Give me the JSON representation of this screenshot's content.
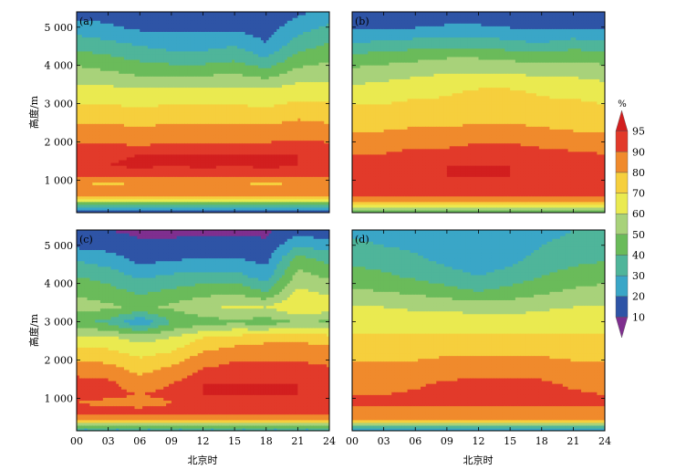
{
  "chart_data": [
    {
      "type": "heatmap",
      "panel_label": "(a)",
      "ylabel": "高度/m",
      "xlabel": "",
      "x_ticks": [
        "00",
        "03",
        "06",
        "09",
        "12",
        "15",
        "18",
        "21",
        "24"
      ],
      "y_ticks": [
        "1 000",
        "2 000",
        "3 000",
        "4 000",
        "5 000"
      ],
      "xlim": [
        0,
        24
      ],
      "ylim": [
        150,
        5400
      ],
      "z_unit": "%",
      "time_h": [
        0,
        3,
        6,
        9,
        12,
        15,
        18,
        21,
        24
      ],
      "heights_m": [
        200,
        350,
        500,
        700,
        900,
        1100,
        1400,
        1700,
        2000,
        2300,
        2600,
        3000,
        3400,
        3800,
        4200,
        4600,
        5000,
        5400
      ],
      "values": [
        [
          15,
          35,
          72,
          90,
          80,
          92,
          95,
          95,
          90,
          84,
          78,
          70,
          62,
          55,
          45,
          35,
          25,
          15
        ],
        [
          15,
          35,
          72,
          90,
          78,
          92,
          95,
          94,
          90,
          84,
          78,
          70,
          62,
          52,
          42,
          32,
          22,
          15
        ],
        [
          15,
          35,
          72,
          88,
          80,
          92,
          96,
          95,
          88,
          82,
          76,
          68,
          60,
          48,
          38,
          28,
          18,
          12
        ],
        [
          15,
          35,
          72,
          90,
          80,
          92,
          95,
          95,
          90,
          84,
          78,
          70,
          60,
          48,
          35,
          25,
          18,
          12
        ],
        [
          15,
          35,
          72,
          90,
          80,
          92,
          96,
          95,
          90,
          84,
          78,
          70,
          62,
          48,
          35,
          25,
          18,
          12
        ],
        [
          15,
          35,
          72,
          90,
          80,
          92,
          95,
          95,
          90,
          84,
          78,
          70,
          62,
          50,
          38,
          28,
          18,
          12
        ],
        [
          15,
          35,
          72,
          90,
          78,
          92,
          96,
          95,
          90,
          84,
          76,
          68,
          60,
          45,
          30,
          20,
          15,
          12
        ],
        [
          15,
          35,
          72,
          90,
          80,
          92,
          95,
          95,
          91,
          86,
          80,
          72,
          64,
          54,
          44,
          34,
          26,
          18
        ],
        [
          15,
          35,
          72,
          90,
          80,
          92,
          95,
          94,
          90,
          84,
          78,
          72,
          64,
          56,
          48,
          40,
          32,
          24
        ]
      ]
    },
    {
      "type": "heatmap",
      "panel_label": "(b)",
      "ylabel": "",
      "xlabel": "",
      "x_ticks": [
        "00",
        "03",
        "06",
        "09",
        "12",
        "15",
        "18",
        "21",
        "24"
      ],
      "y_ticks": [],
      "xlim": [
        0,
        24
      ],
      "ylim": [
        150,
        5400
      ],
      "z_unit": "%",
      "time_h": [
        0,
        3,
        6,
        9,
        12,
        15,
        18,
        21,
        24
      ],
      "heights_m": [
        200,
        350,
        500,
        700,
        900,
        1100,
        1400,
        1700,
        2000,
        2300,
        2600,
        3000,
        3400,
        3800,
        4200,
        4600,
        5000,
        5400
      ],
      "values": [
        [
          40,
          70,
          88,
          92,
          93,
          94,
          92,
          90,
          86,
          80,
          74,
          70,
          62,
          54,
          44,
          30,
          18,
          12
        ],
        [
          40,
          70,
          88,
          92,
          93,
          95,
          93,
          90,
          86,
          80,
          74,
          70,
          64,
          56,
          46,
          32,
          18,
          12
        ],
        [
          40,
          72,
          88,
          93,
          94,
          95,
          94,
          92,
          88,
          82,
          76,
          72,
          66,
          58,
          48,
          34,
          20,
          12
        ],
        [
          40,
          72,
          88,
          93,
          94,
          95,
          95,
          92,
          88,
          82,
          76,
          72,
          68,
          60,
          50,
          36,
          22,
          12
        ],
        [
          40,
          72,
          88,
          93,
          94,
          95,
          95,
          93,
          90,
          84,
          78,
          76,
          70,
          60,
          50,
          36,
          22,
          12
        ],
        [
          40,
          72,
          88,
          93,
          94,
          95,
          95,
          93,
          90,
          84,
          78,
          76,
          70,
          60,
          48,
          32,
          20,
          12
        ],
        [
          40,
          72,
          88,
          93,
          94,
          95,
          94,
          92,
          88,
          82,
          76,
          72,
          68,
          58,
          46,
          30,
          18,
          12
        ],
        [
          40,
          70,
          88,
          92,
          93,
          95,
          93,
          91,
          87,
          80,
          74,
          72,
          66,
          58,
          48,
          34,
          20,
          12
        ],
        [
          40,
          70,
          88,
          92,
          93,
          94,
          92,
          90,
          86,
          80,
          74,
          70,
          64,
          56,
          46,
          32,
          18,
          12
        ]
      ]
    },
    {
      "type": "heatmap",
      "panel_label": "(c)",
      "ylabel": "高度/m",
      "xlabel": "北京时",
      "x_ticks": [
        "00",
        "03",
        "06",
        "09",
        "12",
        "15",
        "18",
        "21",
        "24"
      ],
      "y_ticks": [
        "1 000",
        "2 000",
        "3 000",
        "4 000",
        "5 000"
      ],
      "xlim": [
        0,
        24
      ],
      "ylim": [
        150,
        5400
      ],
      "z_unit": "%",
      "time_h": [
        0,
        3,
        6,
        9,
        12,
        15,
        18,
        21,
        24
      ],
      "heights_m": [
        200,
        350,
        500,
        700,
        900,
        1100,
        1400,
        1700,
        2000,
        2300,
        2600,
        3000,
        3400,
        3800,
        4200,
        4600,
        5000,
        5400
      ],
      "values": [
        [
          30,
          60,
          88,
          92,
          90,
          92,
          93,
          88,
          80,
          72,
          64,
          40,
          55,
          48,
          40,
          30,
          18,
          10
        ],
        [
          30,
          60,
          88,
          92,
          88,
          92,
          92,
          86,
          78,
          70,
          62,
          38,
          52,
          44,
          36,
          26,
          16,
          10
        ],
        [
          30,
          60,
          88,
          92,
          86,
          90,
          86,
          78,
          72,
          64,
          56,
          20,
          48,
          38,
          28,
          18,
          12,
          8
        ],
        [
          30,
          60,
          88,
          92,
          90,
          92,
          90,
          84,
          76,
          68,
          60,
          40,
          52,
          42,
          32,
          20,
          12,
          8
        ],
        [
          30,
          60,
          88,
          93,
          93,
          95,
          95,
          92,
          86,
          78,
          70,
          45,
          58,
          46,
          34,
          22,
          14,
          8
        ],
        [
          30,
          60,
          88,
          93,
          93,
          95,
          95,
          93,
          90,
          82,
          74,
          48,
          62,
          48,
          34,
          22,
          14,
          8
        ],
        [
          30,
          60,
          88,
          93,
          93,
          95,
          95,
          93,
          90,
          84,
          76,
          45,
          60,
          40,
          25,
          18,
          12,
          8
        ],
        [
          30,
          60,
          88,
          93,
          93,
          95,
          95,
          93,
          90,
          84,
          78,
          50,
          70,
          62,
          54,
          46,
          30,
          15
        ],
        [
          30,
          60,
          88,
          92,
          92,
          94,
          94,
          92,
          88,
          82,
          74,
          48,
          66,
          58,
          48,
          38,
          25,
          12
        ]
      ]
    },
    {
      "type": "heatmap",
      "panel_label": "(d)",
      "ylabel": "",
      "xlabel": "北京时",
      "x_ticks": [
        "00",
        "03",
        "06",
        "09",
        "12",
        "15",
        "18",
        "21",
        "24"
      ],
      "y_ticks": [],
      "xlim": [
        0,
        24
      ],
      "ylim": [
        150,
        5400
      ],
      "z_unit": "%",
      "time_h": [
        0,
        3,
        6,
        9,
        12,
        15,
        18,
        21,
        24
      ],
      "heights_m": [
        200,
        350,
        500,
        700,
        900,
        1100,
        1400,
        1700,
        2000,
        2300,
        2600,
        3000,
        3400,
        3800,
        4200,
        4600,
        5000,
        5400
      ],
      "values": [
        [
          25,
          60,
          90,
          80,
          95,
          90,
          88,
          84,
          80,
          76,
          72,
          66,
          60,
          52,
          44,
          38,
          32,
          28
        ],
        [
          25,
          60,
          90,
          80,
          95,
          90,
          88,
          84,
          80,
          76,
          72,
          66,
          60,
          50,
          42,
          36,
          30,
          26
        ],
        [
          25,
          60,
          90,
          80,
          95,
          91,
          89,
          85,
          80,
          76,
          72,
          66,
          58,
          48,
          38,
          32,
          28,
          24
        ],
        [
          25,
          60,
          90,
          82,
          95,
          92,
          91,
          87,
          82,
          76,
          72,
          66,
          58,
          44,
          34,
          28,
          24,
          22
        ],
        [
          25,
          60,
          90,
          82,
          95,
          93,
          92,
          88,
          82,
          76,
          72,
          64,
          56,
          40,
          30,
          24,
          22,
          20
        ],
        [
          25,
          60,
          90,
          82,
          95,
          93,
          92,
          88,
          82,
          76,
          72,
          64,
          56,
          44,
          34,
          28,
          24,
          22
        ],
        [
          25,
          60,
          90,
          82,
          95,
          92,
          91,
          88,
          82,
          76,
          72,
          66,
          58,
          48,
          40,
          34,
          30,
          26
        ],
        [
          25,
          60,
          90,
          80,
          95,
          91,
          89,
          86,
          80,
          76,
          72,
          66,
          60,
          52,
          44,
          38,
          34,
          30
        ],
        [
          25,
          60,
          90,
          80,
          95,
          90,
          88,
          84,
          80,
          76,
          72,
          66,
          60,
          54,
          46,
          40,
          36,
          32
        ]
      ]
    }
  ],
  "colorbar": {
    "unit": "%",
    "tick_labels": [
      "10",
      "20",
      "30",
      "40",
      "50",
      "60",
      "70",
      "80",
      "90",
      "95"
    ],
    "levels": [
      5,
      10,
      20,
      30,
      40,
      50,
      60,
      70,
      80,
      90,
      95,
      100
    ],
    "colors": [
      "#7f2f8f",
      "#2e54a6",
      "#3aa6c7",
      "#4fb59a",
      "#6abb5a",
      "#a8d27a",
      "#eaea50",
      "#f6cf3d",
      "#f08a2c",
      "#e23a2a",
      "#d21f1f"
    ]
  }
}
